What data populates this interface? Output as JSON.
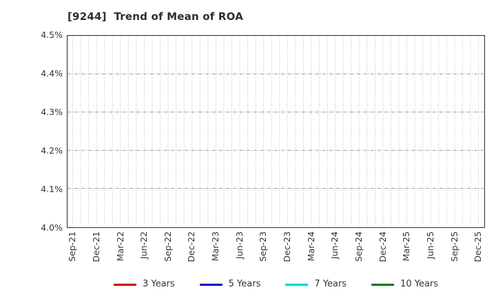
{
  "chart_data": {
    "type": "line",
    "title": "[9244]  Trend of Mean of ROA",
    "title_align": "left",
    "x_tick_labels": [
      "Sep-21",
      "Dec-21",
      "Mar-22",
      "Jun-22",
      "Sep-22",
      "Dec-22",
      "Mar-23",
      "Jun-23",
      "Sep-23",
      "Dec-23",
      "Mar-24",
      "Jun-24",
      "Sep-24",
      "Dec-24",
      "Mar-25",
      "Jun-25",
      "Sep-25",
      "Dec-25"
    ],
    "x_months_per_tick": 3,
    "x_total_months": 52,
    "y_tick_labels": [
      "4.5%",
      "4.4%",
      "4.3%",
      "4.2%",
      "4.1%",
      "4.0%"
    ],
    "ylim": [
      4.0,
      4.5
    ],
    "grid": true,
    "legend_position": "bottom",
    "series": [
      {
        "name": "3 Years",
        "color": "#ee0000",
        "values": []
      },
      {
        "name": "5 Years",
        "color": "#0000ee",
        "values": []
      },
      {
        "name": "7 Years",
        "color": "#00dddd",
        "values": []
      },
      {
        "name": "10 Years",
        "color": "#008000",
        "values": []
      }
    ]
  },
  "style": {
    "plot_border_color": "#262626",
    "vgrid_color": "#b5b5b5",
    "hgrid_color": "#999999",
    "text_color": "#333333",
    "background": "#ffffff"
  }
}
